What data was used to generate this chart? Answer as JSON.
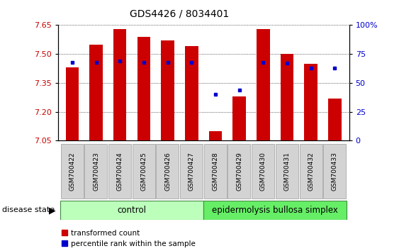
{
  "title": "GDS4426 / 8034401",
  "samples": [
    "GSM700422",
    "GSM700423",
    "GSM700424",
    "GSM700425",
    "GSM700426",
    "GSM700427",
    "GSM700428",
    "GSM700429",
    "GSM700430",
    "GSM700431",
    "GSM700432",
    "GSM700433"
  ],
  "bar_values": [
    7.43,
    7.55,
    7.63,
    7.59,
    7.57,
    7.54,
    7.1,
    7.28,
    7.63,
    7.5,
    7.45,
    7.27
  ],
  "dot_percentiles": [
    68,
    68,
    69,
    68,
    68,
    68,
    40,
    44,
    68,
    67,
    63,
    63
  ],
  "ymin": 7.05,
  "ymax": 7.65,
  "y_ticks_left": [
    7.05,
    7.2,
    7.35,
    7.5,
    7.65
  ],
  "y_ticks_right": [
    0,
    25,
    50,
    75,
    100
  ],
  "bar_color": "#cc0000",
  "dot_color": "#0000cc",
  "bar_width": 0.55,
  "control_count": 6,
  "disease_count": 6,
  "control_label": "control",
  "disease_label": "epidermolysis bullosa simplex",
  "group_label": "disease state",
  "legend_bar": "transformed count",
  "legend_dot": "percentile rank within the sample",
  "control_color": "#bbffbb",
  "disease_color": "#66ee66",
  "cell_color": "#d3d3d3",
  "cell_edge": "#999999"
}
